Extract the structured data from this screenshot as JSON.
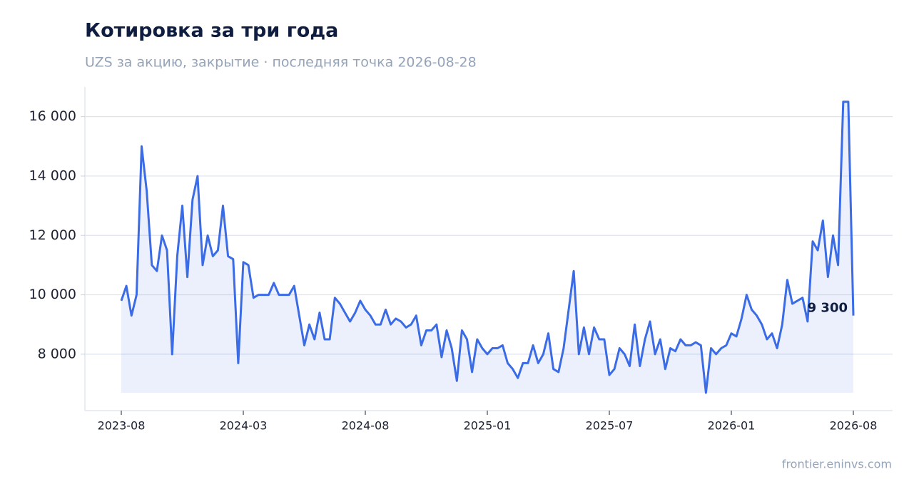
{
  "chart_data": {
    "type": "line",
    "title": "Котировка за три года",
    "subtitle": "UZS за акцию, закрытие · последняя точка 2026-08-28",
    "source": "frontier.eninvs.com",
    "categories": [
      "2023-08",
      null,
      null,
      null,
      null,
      null,
      null,
      null,
      null,
      null,
      null,
      null,
      null,
      null,
      null,
      null,
      null,
      null,
      null,
      null,
      null,
      null,
      null,
      null,
      "2024-03",
      null,
      null,
      null,
      null,
      null,
      null,
      null,
      null,
      null,
      null,
      null,
      null,
      null,
      null,
      null,
      null,
      null,
      null,
      null,
      null,
      null,
      null,
      null,
      "2024-08",
      null,
      null,
      null,
      null,
      null,
      null,
      null,
      null,
      null,
      null,
      null,
      null,
      null,
      null,
      null,
      null,
      null,
      null,
      null,
      null,
      null,
      null,
      null,
      "2025-01",
      null,
      null,
      null,
      null,
      null,
      null,
      null,
      null,
      null,
      null,
      null,
      null,
      null,
      null,
      null,
      null,
      null,
      null,
      null,
      null,
      null,
      null,
      null,
      "2025-07",
      null,
      null,
      null,
      null,
      null,
      null,
      null,
      null,
      null,
      null,
      null,
      null,
      null,
      null,
      null,
      null,
      null,
      null,
      null,
      null,
      null,
      null,
      null,
      "2026-01",
      null,
      null,
      null,
      null,
      null,
      null,
      null,
      null,
      null,
      null,
      null,
      null,
      null,
      null,
      null,
      null,
      null,
      null,
      null,
      null,
      null,
      null,
      null,
      "2026-08"
    ],
    "values": [
      9800,
      10300,
      9300,
      10000,
      15000,
      13500,
      11000,
      10800,
      12000,
      11500,
      8000,
      11300,
      13000,
      10600,
      13200,
      14000,
      11000,
      12000,
      11300,
      11500,
      13000,
      11300,
      11200,
      7700,
      11100,
      11000,
      9900,
      10000,
      10000,
      10000,
      10400,
      10000,
      10000,
      10000,
      10300,
      9300,
      8300,
      9000,
      8500,
      9400,
      8500,
      8500,
      9900,
      9700,
      9400,
      9100,
      9400,
      9800,
      9500,
      9300,
      9000,
      9000,
      9500,
      9000,
      9200,
      9100,
      8900,
      9000,
      9300,
      8300,
      8800,
      8800,
      9000,
      7900,
      8800,
      8200,
      7100,
      8800,
      8500,
      7400,
      8500,
      8200,
      8000,
      8200,
      8200,
      8300,
      7700,
      7500,
      7200,
      7700,
      7700,
      8300,
      7700,
      8000,
      8700,
      7500,
      7400,
      8200,
      9500,
      10800,
      8000,
      8900,
      8000,
      8900,
      8500,
      8500,
      7300,
      7500,
      8200,
      8000,
      7600,
      9000,
      7600,
      8500,
      9100,
      8000,
      8500,
      7500,
      8200,
      8100,
      8500,
      8300,
      8300,
      8400,
      8300,
      6700,
      8200,
      8000,
      8200,
      8300,
      8700,
      8600,
      9200,
      10000,
      9500,
      9300,
      9000,
      8500,
      8700,
      8200,
      9000,
      10500,
      9700,
      9800,
      9900,
      9100,
      11800,
      11500,
      12500,
      10600,
      12000,
      11000,
      16500,
      16500,
      9300
    ],
    "value_labels": [
      null,
      null,
      null,
      null,
      null,
      null,
      null,
      null,
      null,
      null,
      null,
      null,
      null,
      null,
      null,
      null,
      null,
      null,
      null,
      null,
      null,
      null,
      null,
      null,
      null,
      null,
      null,
      null,
      null,
      null,
      null,
      null,
      null,
      null,
      null,
      null,
      null,
      null,
      null,
      null,
      null,
      null,
      null,
      null,
      null,
      null,
      null,
      null,
      null,
      null,
      null,
      null,
      null,
      null,
      null,
      null,
      null,
      null,
      null,
      null,
      null,
      null,
      null,
      null,
      null,
      null,
      null,
      null,
      null,
      null,
      null,
      null,
      null,
      null,
      null,
      null,
      null,
      null,
      null,
      null,
      null,
      null,
      null,
      null,
      null,
      null,
      null,
      null,
      null,
      null,
      null,
      null,
      null,
      null,
      null,
      null,
      null,
      null,
      null,
      null,
      null,
      null,
      null,
      null,
      null,
      null,
      null,
      null,
      null,
      null,
      null,
      null,
      null,
      null,
      null,
      null,
      null,
      null,
      null,
      null,
      null,
      null,
      null,
      null,
      null,
      null,
      null,
      null,
      null,
      null,
      null,
      null,
      null,
      null,
      null,
      null,
      null,
      null,
      null,
      null,
      null,
      null,
      null,
      null,
      "9 300"
    ],
    "color": "#3b6ce6",
    "ylim": [
      6100,
      17000
    ],
    "yticks": [
      {
        "value": 8000,
        "label": "8 000"
      },
      {
        "value": 10000,
        "label": "10 000"
      },
      {
        "value": 12000,
        "label": "12 000"
      },
      {
        "value": 14000,
        "label": "14 000"
      },
      {
        "value": 16000,
        "label": "16 000"
      }
    ],
    "grid": true
  }
}
